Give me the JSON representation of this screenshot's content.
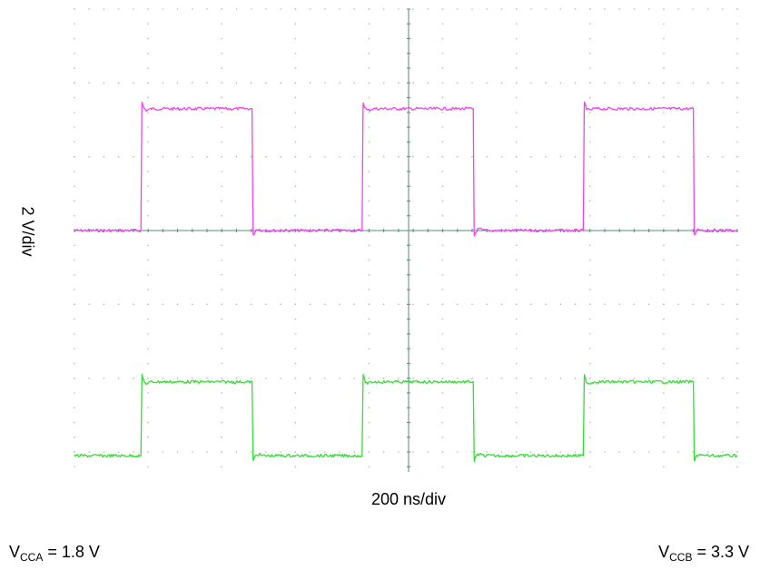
{
  "chart_data": {
    "type": "line",
    "title": "",
    "xlabel": "200 ns/div",
    "ylabel": "2 V/div",
    "grid": "dotted",
    "x_divisions": 9,
    "y_divisions": 6,
    "period_divisions": 3,
    "series": [
      {
        "color": "#ee44ee",
        "pulses": [
          {
            "rise_div": 0.9,
            "fall_div": 2.4
          },
          {
            "rise_div": 3.9,
            "fall_div": 5.4
          },
          {
            "rise_div": 6.9,
            "fall_div": 8.4
          }
        ],
        "low_div": 0,
        "high_div": 1.65
      },
      {
        "color": "#33dd33",
        "pulses": [
          {
            "rise_div": 0.9,
            "fall_div": 2.4
          },
          {
            "rise_div": 3.9,
            "fall_div": 5.4
          },
          {
            "rise_div": 6.9,
            "fall_div": 8.4
          }
        ],
        "low_div": -3.05,
        "high_div": -2.05
      }
    ]
  },
  "footer": {
    "vcca_main": "V",
    "vcca_sub": "CCA",
    "vcca_value": " = 1.8 V",
    "vccb_main": "V",
    "vccb_sub": "CCB",
    "vccb_value": " = 3.3 V"
  }
}
